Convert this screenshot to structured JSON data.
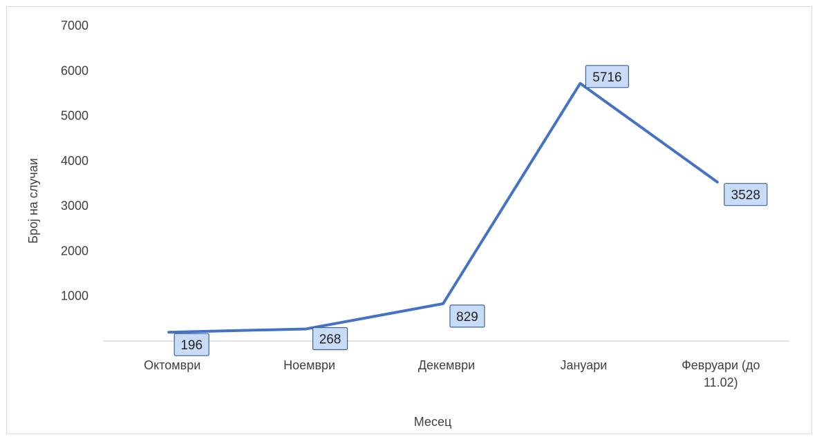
{
  "chart_data": {
    "type": "line",
    "title": "",
    "xlabel": "Месец",
    "ylabel": "Број на случаи",
    "categories": [
      "Октомври",
      "Ноември",
      "Декември",
      "Јануари",
      "Февруари (до 11.02)"
    ],
    "category_lines": [
      [
        "Октомври"
      ],
      [
        "Ноември"
      ],
      [
        "Декември"
      ],
      [
        "Јануари"
      ],
      [
        "Февруари (до",
        "11.02)"
      ]
    ],
    "y_ticks": [
      "1000",
      "2000",
      "3000",
      "4000",
      "5000",
      "6000",
      "7000"
    ],
    "ylim": [
      0,
      7000
    ],
    "series": [
      {
        "values": [
          196,
          268,
          829,
          5716,
          3528
        ]
      }
    ],
    "data_labels": [
      "196",
      "268",
      "829",
      "5716",
      "3528"
    ],
    "grid": false,
    "legend": "none",
    "colors": {
      "line": "#4472c4",
      "label_fill": "#c9dcf7",
      "label_border": "#3c5f9c",
      "axis": "#d9d9d9",
      "text": "#404040"
    }
  }
}
